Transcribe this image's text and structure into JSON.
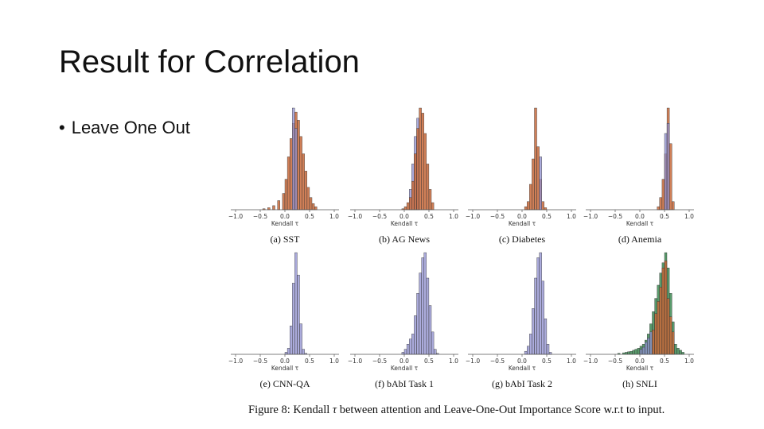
{
  "slide": {
    "title": "Result for Correlation",
    "bullet": "Leave One Out"
  },
  "figure": {
    "caption_prefix": "Figure 8: Kendall",
    "caption_symbol": "τ",
    "caption_suffix": "between attention and Leave-One-Out Importance Score w.r.t to input."
  },
  "colors": {
    "orange": "#c8693a",
    "purple": "#8f8fd0",
    "green": "#3c8a52",
    "edge": "#333333"
  },
  "chart_data": [
    {
      "type": "histogram",
      "label": "(a) SST",
      "xlabel": "Kendall τ",
      "xlim": [
        -1.0,
        1.0
      ],
      "xticks": [
        "−1.0",
        "−0.5",
        "0.0",
        "0.5",
        "1.0"
      ],
      "series": [
        {
          "color": "orange",
          "bins": [
            [
              -0.45,
              0.01
            ],
            [
              -0.35,
              0.02
            ],
            [
              -0.25,
              0.04
            ],
            [
              -0.15,
              0.09
            ],
            [
              -0.05,
              0.16
            ],
            [
              0.0,
              0.3
            ],
            [
              0.05,
              0.52
            ],
            [
              0.1,
              0.7
            ],
            [
              0.15,
              0.85
            ],
            [
              0.2,
              0.96
            ],
            [
              0.25,
              0.88
            ],
            [
              0.3,
              0.72
            ],
            [
              0.35,
              0.55
            ],
            [
              0.4,
              0.38
            ],
            [
              0.45,
              0.22
            ],
            [
              0.5,
              0.12
            ],
            [
              0.55,
              0.06
            ],
            [
              0.6,
              0.03
            ]
          ]
        },
        {
          "color": "purple",
          "bins": [
            [
              0.15,
              1.0
            ],
            [
              0.2,
              0.8
            ]
          ]
        }
      ]
    },
    {
      "type": "histogram",
      "label": "(b) AG News",
      "xlabel": "Kendall τ",
      "xlim": [
        -1.0,
        1.0
      ],
      "xticks": [
        "−1.0",
        "−0.5",
        "0.0",
        "0.5",
        "1.0"
      ],
      "series": [
        {
          "color": "purple",
          "bins": [
            [
              0.1,
              0.2
            ],
            [
              0.15,
              0.45
            ],
            [
              0.2,
              0.72
            ],
            [
              0.25,
              0.9
            ]
          ]
        },
        {
          "color": "orange",
          "bins": [
            [
              -0.05,
              0.01
            ],
            [
              0.0,
              0.03
            ],
            [
              0.05,
              0.07
            ],
            [
              0.1,
              0.12
            ],
            [
              0.15,
              0.28
            ],
            [
              0.2,
              0.55
            ],
            [
              0.25,
              0.8
            ],
            [
              0.3,
              1.0
            ],
            [
              0.35,
              0.95
            ],
            [
              0.4,
              0.75
            ],
            [
              0.45,
              0.45
            ],
            [
              0.5,
              0.2
            ],
            [
              0.55,
              0.07
            ]
          ]
        }
      ]
    },
    {
      "type": "histogram",
      "label": "(c) Diabetes",
      "xlabel": "Kendall τ",
      "xlim": [
        -1.0,
        1.0
      ],
      "xticks": [
        "−1.0",
        "−0.5",
        "0.0",
        "0.5",
        "1.0"
      ],
      "series": [
        {
          "color": "orange",
          "bins": [
            [
              0.05,
              0.03
            ],
            [
              0.1,
              0.08
            ],
            [
              0.15,
              0.25
            ],
            [
              0.2,
              0.5
            ],
            [
              0.25,
              1.0
            ],
            [
              0.3,
              0.62
            ],
            [
              0.35,
              0.3
            ],
            [
              0.4,
              0.08
            ],
            [
              0.45,
              0.02
            ]
          ]
        },
        {
          "color": "purple",
          "bins": [
            [
              0.35,
              0.52
            ]
          ]
        }
      ]
    },
    {
      "type": "histogram",
      "label": "(d) Anemia",
      "xlabel": "Kendall τ",
      "xlim": [
        -1.0,
        1.0
      ],
      "xticks": [
        "−1.0",
        "−0.5",
        "0.0",
        "0.5",
        "1.0"
      ],
      "series": [
        {
          "color": "orange",
          "bins": [
            [
              0.35,
              0.03
            ],
            [
              0.4,
              0.12
            ],
            [
              0.45,
              0.3
            ],
            [
              0.5,
              0.55
            ],
            [
              0.55,
              1.0
            ],
            [
              0.6,
              0.65
            ],
            [
              0.65,
              0.08
            ]
          ]
        },
        {
          "color": "purple",
          "bins": [
            [
              0.5,
              0.75
            ],
            [
              0.55,
              0.85
            ]
          ]
        }
      ]
    },
    {
      "type": "histogram",
      "label": "(e) CNN-QA",
      "xlabel": "Kendall τ",
      "xlim": [
        -1.0,
        1.0
      ],
      "xticks": [
        "−1.0",
        "−0.5",
        "0.0",
        "0.5",
        "1.0"
      ],
      "series": [
        {
          "color": "purple",
          "bins": [
            [
              0.0,
              0.02
            ],
            [
              0.05,
              0.06
            ],
            [
              0.1,
              0.28
            ],
            [
              0.15,
              0.7
            ],
            [
              0.2,
              1.0
            ],
            [
              0.25,
              0.78
            ],
            [
              0.3,
              0.3
            ],
            [
              0.35,
              0.05
            ],
            [
              0.4,
              0.01
            ]
          ]
        }
      ]
    },
    {
      "type": "histogram",
      "label": "(f) bAbI Task 1",
      "xlabel": "Kendall τ",
      "xlim": [
        -1.0,
        1.0
      ],
      "xticks": [
        "−1.0",
        "−0.5",
        "0.0",
        "0.5",
        "1.0"
      ],
      "series": [
        {
          "color": "purple",
          "bins": [
            [
              -0.05,
              0.02
            ],
            [
              0.0,
              0.05
            ],
            [
              0.05,
              0.1
            ],
            [
              0.1,
              0.15
            ],
            [
              0.15,
              0.2
            ],
            [
              0.2,
              0.38
            ],
            [
              0.25,
              0.6
            ],
            [
              0.3,
              0.8
            ],
            [
              0.35,
              0.95
            ],
            [
              0.4,
              1.0
            ],
            [
              0.45,
              0.75
            ],
            [
              0.5,
              0.48
            ],
            [
              0.55,
              0.22
            ],
            [
              0.6,
              0.05
            ],
            [
              0.65,
              0.01
            ]
          ]
        }
      ]
    },
    {
      "type": "histogram",
      "label": "(g) bAbI Task 2",
      "xlabel": "Kendall τ",
      "xlim": [
        -1.0,
        1.0
      ],
      "xticks": [
        "−1.0",
        "−0.5",
        "0.0",
        "0.5",
        "1.0"
      ],
      "series": [
        {
          "color": "purple",
          "bins": [
            [
              0.05,
              0.03
            ],
            [
              0.1,
              0.08
            ],
            [
              0.15,
              0.2
            ],
            [
              0.2,
              0.45
            ],
            [
              0.25,
              0.75
            ],
            [
              0.3,
              0.95
            ],
            [
              0.35,
              1.0
            ],
            [
              0.4,
              0.72
            ],
            [
              0.45,
              0.35
            ],
            [
              0.5,
              0.1
            ],
            [
              0.55,
              0.02
            ]
          ]
        }
      ]
    },
    {
      "type": "histogram",
      "label": "(h) SNLI",
      "xlabel": "Kendall τ",
      "xlim": [
        -1.0,
        1.0
      ],
      "xticks": [
        "−1.0",
        "−0.5",
        "0.0",
        "0.5",
        "1.0"
      ],
      "series": [
        {
          "color": "green",
          "bins": [
            [
              -0.45,
              0.01
            ],
            [
              -0.35,
              0.015
            ],
            [
              -0.3,
              0.02
            ],
            [
              -0.25,
              0.025
            ],
            [
              -0.2,
              0.03
            ],
            [
              -0.15,
              0.04
            ],
            [
              -0.1,
              0.05
            ],
            [
              -0.05,
              0.06
            ],
            [
              0.0,
              0.08
            ],
            [
              0.05,
              0.1
            ],
            [
              0.1,
              0.14
            ],
            [
              0.15,
              0.2
            ],
            [
              0.2,
              0.3
            ],
            [
              0.25,
              0.42
            ],
            [
              0.3,
              0.55
            ],
            [
              0.35,
              0.68
            ],
            [
              0.4,
              0.8
            ],
            [
              0.45,
              0.9
            ],
            [
              0.5,
              1.0
            ],
            [
              0.55,
              0.85
            ],
            [
              0.6,
              0.6
            ],
            [
              0.65,
              0.32
            ],
            [
              0.7,
              0.1
            ],
            [
              0.75,
              0.06
            ],
            [
              0.8,
              0.04
            ],
            [
              0.85,
              0.02
            ]
          ]
        },
        {
          "color": "orange",
          "bins": [
            [
              0.25,
              0.24
            ],
            [
              0.3,
              0.4
            ],
            [
              0.35,
              0.52
            ],
            [
              0.4,
              0.66
            ],
            [
              0.45,
              0.85
            ],
            [
              0.5,
              0.92
            ],
            [
              0.55,
              0.55
            ],
            [
              0.6,
              0.37
            ],
            [
              0.65,
              0.22
            ]
          ]
        },
        {
          "color": "purple",
          "bins": [
            [
              0.0,
              0.05
            ],
            [
              0.05,
              0.07
            ],
            [
              0.1,
              0.12
            ],
            [
              0.15,
              0.16
            ],
            [
              0.2,
              0.22
            ]
          ]
        }
      ]
    }
  ]
}
